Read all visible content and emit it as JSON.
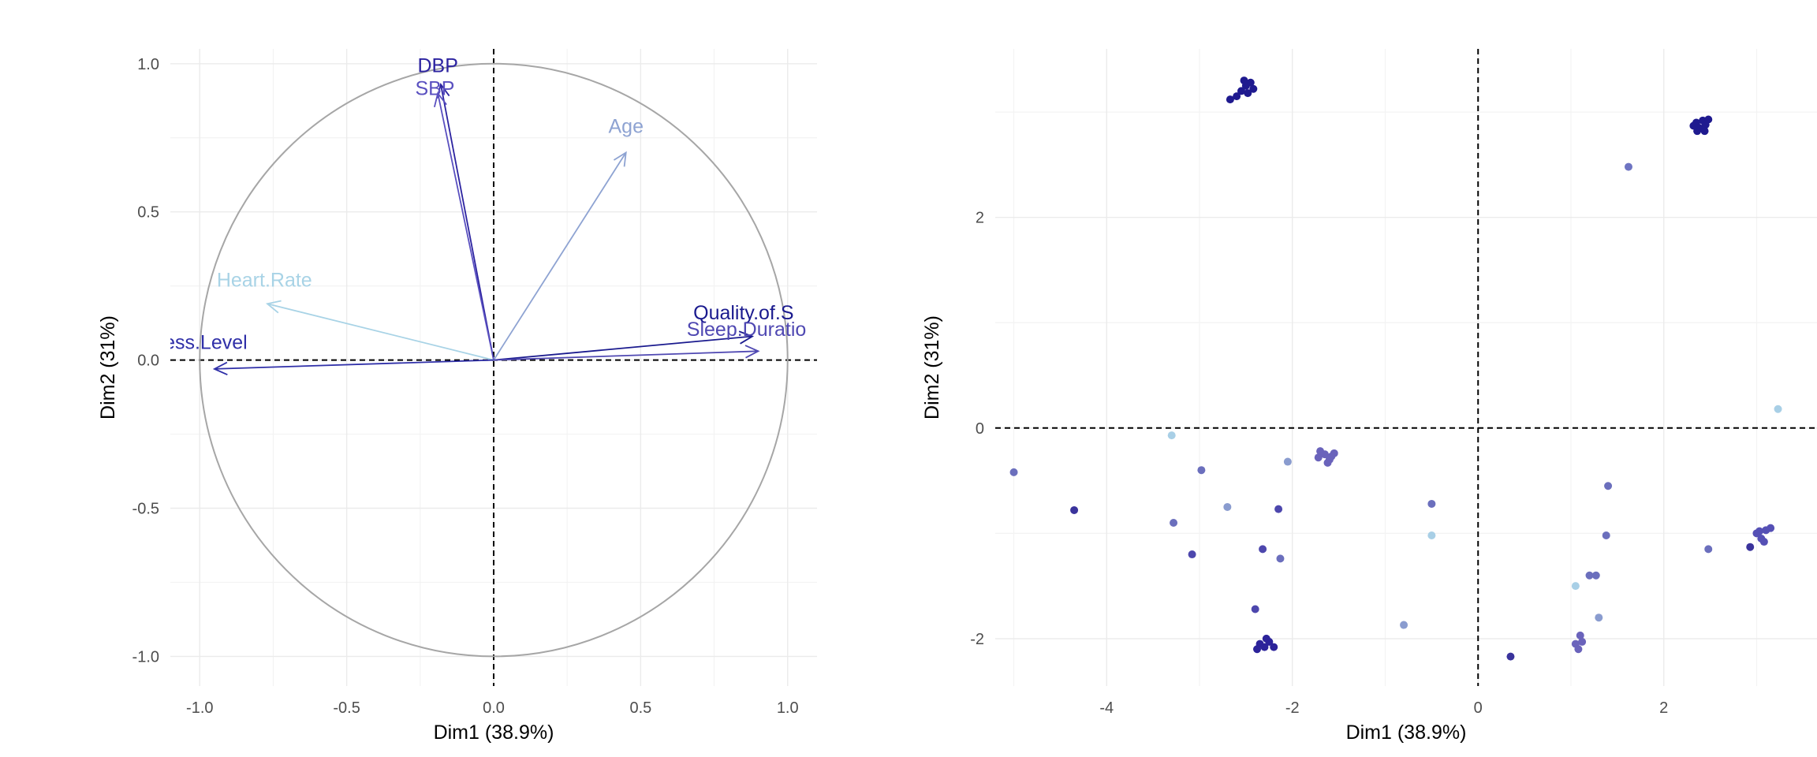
{
  "chart_data": [
    {
      "type": "variable-correlation-circle",
      "xlabel": "Dim1 (38.9%)",
      "ylabel": "Dim2 (31%)",
      "xlim": [
        -1.1,
        1.1
      ],
      "ylim": [
        -1.1,
        1.05
      ],
      "x_ticks": [
        "-1.0",
        "-0.5",
        "0.0",
        "0.5",
        "1.0"
      ],
      "y_ticks": [
        "1.0",
        "0.5",
        "0.0",
        "-0.5",
        "-1.0"
      ],
      "grid": true,
      "unit_circle": true,
      "variables": [
        {
          "name": "DBP",
          "x": -0.18,
          "y": 0.93,
          "color": "#2c23a0"
        },
        {
          "name": "SBP",
          "x": -0.19,
          "y": 0.9,
          "color": "#5a50c0"
        },
        {
          "name": "Age",
          "x": 0.45,
          "y": 0.7,
          "color": "#8ea3d2"
        },
        {
          "name": "Heart.Rate",
          "x": -0.77,
          "y": 0.19,
          "color": "#a8d3e6"
        },
        {
          "name": "Quality.of.S",
          "x": 0.88,
          "y": 0.08,
          "color": "#1a1a8e"
        },
        {
          "name": "Sleep.Duratio",
          "x": 0.9,
          "y": 0.03,
          "color": "#4f48b2"
        },
        {
          "name": "tress.Level",
          "x": -0.95,
          "y": -0.03,
          "color": "#2f2fa8"
        }
      ]
    },
    {
      "type": "scatter",
      "xlabel": "Dim1 (38.9%)",
      "ylabel": "Dim2 (31%)",
      "xlim": [
        -5.2,
        3.65
      ],
      "ylim": [
        -2.45,
        3.6
      ],
      "x_ticks": [
        "-4",
        "-2",
        "0",
        "2"
      ],
      "y_ticks": [
        "2",
        "0",
        "-2"
      ],
      "grid": true,
      "points": [
        {
          "x": -2.5,
          "y": 3.25,
          "color": "#1f1a8f"
        },
        {
          "x": -2.55,
          "y": 3.2,
          "color": "#1f1a8f"
        },
        {
          "x": -2.45,
          "y": 3.28,
          "color": "#1f1a8f"
        },
        {
          "x": -2.6,
          "y": 3.15,
          "color": "#1f1a8f"
        },
        {
          "x": -2.52,
          "y": 3.3,
          "color": "#1f1a8f"
        },
        {
          "x": -2.48,
          "y": 3.18,
          "color": "#1f1a8f"
        },
        {
          "x": -2.42,
          "y": 3.22,
          "color": "#1f1a8f"
        },
        {
          "x": -2.67,
          "y": 3.12,
          "color": "#1f1a8f"
        },
        {
          "x": 2.35,
          "y": 2.9,
          "color": "#1f1a8f"
        },
        {
          "x": 2.38,
          "y": 2.85,
          "color": "#1f1a8f"
        },
        {
          "x": 2.42,
          "y": 2.92,
          "color": "#1f1a8f"
        },
        {
          "x": 2.45,
          "y": 2.88,
          "color": "#1f1a8f"
        },
        {
          "x": 2.36,
          "y": 2.82,
          "color": "#1f1a8f"
        },
        {
          "x": 2.48,
          "y": 2.93,
          "color": "#1f1a8f"
        },
        {
          "x": 2.32,
          "y": 2.87,
          "color": "#1f1a8f"
        },
        {
          "x": 2.44,
          "y": 2.82,
          "color": "#1f1a8f"
        },
        {
          "x": 1.62,
          "y": 2.48,
          "color": "#6e74c2"
        },
        {
          "x": 3.23,
          "y": 0.18,
          "color": "#a8cfe6"
        },
        {
          "x": -5.0,
          "y": -0.42,
          "color": "#6b6fbd"
        },
        {
          "x": -4.35,
          "y": -0.78,
          "color": "#3a339c"
        },
        {
          "x": -3.3,
          "y": -0.07,
          "color": "#a8cfe6"
        },
        {
          "x": -3.28,
          "y": -0.9,
          "color": "#6b6fbd"
        },
        {
          "x": -3.08,
          "y": -1.2,
          "color": "#4d47ad"
        },
        {
          "x": -2.98,
          "y": -0.4,
          "color": "#6b6fbd"
        },
        {
          "x": -2.7,
          "y": -0.75,
          "color": "#8a9ccf"
        },
        {
          "x": -2.32,
          "y": -1.15,
          "color": "#4d47ad"
        },
        {
          "x": -2.4,
          "y": -1.72,
          "color": "#4d47ad"
        },
        {
          "x": -2.15,
          "y": -0.77,
          "color": "#4d47ad"
        },
        {
          "x": -2.13,
          "y": -1.24,
          "color": "#6b6fbd"
        },
        {
          "x": -2.05,
          "y": -0.32,
          "color": "#8a9ccf"
        },
        {
          "x": -2.35,
          "y": -2.05,
          "color": "#2c239a"
        },
        {
          "x": -2.3,
          "y": -2.08,
          "color": "#2c239a"
        },
        {
          "x": -2.25,
          "y": -2.03,
          "color": "#2c239a"
        },
        {
          "x": -2.38,
          "y": -2.1,
          "color": "#2c239a"
        },
        {
          "x": -2.2,
          "y": -2.08,
          "color": "#2c239a"
        },
        {
          "x": -2.28,
          "y": -2.0,
          "color": "#2c239a"
        },
        {
          "x": -1.65,
          "y": -0.25,
          "color": "#6a63bb"
        },
        {
          "x": -1.6,
          "y": -0.3,
          "color": "#6a63bb"
        },
        {
          "x": -1.7,
          "y": -0.22,
          "color": "#6a63bb"
        },
        {
          "x": -1.55,
          "y": -0.24,
          "color": "#6a63bb"
        },
        {
          "x": -1.62,
          "y": -0.33,
          "color": "#6a63bb"
        },
        {
          "x": -1.72,
          "y": -0.28,
          "color": "#6a63bb"
        },
        {
          "x": -1.58,
          "y": -0.27,
          "color": "#6a63bb"
        },
        {
          "x": -0.5,
          "y": -0.72,
          "color": "#6b6fbd"
        },
        {
          "x": -0.5,
          "y": -1.02,
          "color": "#a8cfe6"
        },
        {
          "x": -0.8,
          "y": -1.87,
          "color": "#8a9ccf"
        },
        {
          "x": 0.35,
          "y": -2.17,
          "color": "#3a339c"
        },
        {
          "x": 1.05,
          "y": -1.5,
          "color": "#a8cfe6"
        },
        {
          "x": 1.05,
          "y": -2.05,
          "color": "#6a63bb"
        },
        {
          "x": 1.08,
          "y": -2.1,
          "color": "#6a63bb"
        },
        {
          "x": 1.1,
          "y": -1.97,
          "color": "#6a63bb"
        },
        {
          "x": 1.12,
          "y": -2.03,
          "color": "#6a63bb"
        },
        {
          "x": 1.2,
          "y": -1.4,
          "color": "#6b6fbd"
        },
        {
          "x": 1.27,
          "y": -1.4,
          "color": "#6b6fbd"
        },
        {
          "x": 1.3,
          "y": -1.8,
          "color": "#8a9ccf"
        },
        {
          "x": 1.38,
          "y": -1.02,
          "color": "#6b6fbd"
        },
        {
          "x": 1.4,
          "y": -0.55,
          "color": "#6b6fbd"
        },
        {
          "x": 2.48,
          "y": -1.15,
          "color": "#6b6fbd"
        },
        {
          "x": 2.93,
          "y": -1.13,
          "color": "#3a339c"
        },
        {
          "x": 3.0,
          "y": -1.0,
          "color": "#5550b5"
        },
        {
          "x": 3.05,
          "y": -1.05,
          "color": "#5550b5"
        },
        {
          "x": 3.1,
          "y": -0.97,
          "color": "#5550b5"
        },
        {
          "x": 3.15,
          "y": -0.95,
          "color": "#5550b5"
        },
        {
          "x": 3.08,
          "y": -1.08,
          "color": "#5550b5"
        },
        {
          "x": 3.03,
          "y": -0.98,
          "color": "#5550b5"
        }
      ]
    }
  ]
}
